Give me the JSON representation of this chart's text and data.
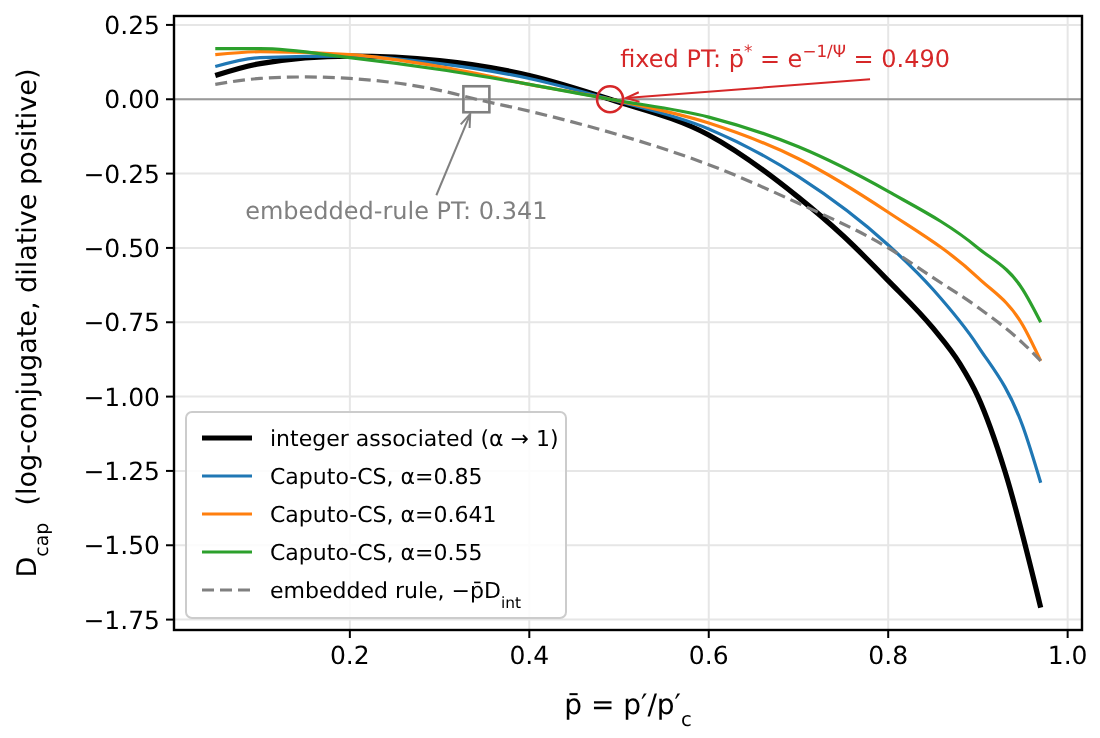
{
  "chart_data": {
    "type": "line",
    "xlabel": "p̄ = p′/p′$_{c}$",
    "ylabel": "D$_{cap}$  (log-conjugate, dilative positive)",
    "xlim": [
      0.004,
      1.016
    ],
    "ylim": [
      -1.785,
      0.28
    ],
    "xticks": [
      0.2,
      0.4,
      0.6,
      0.8,
      {
        "value": 1,
        "label": "1.0"
      }
    ],
    "yticks": [
      {
        "value": 0.25,
        "label": "0.25"
      },
      {
        "value": 0,
        "label": "0.00"
      },
      {
        "value": -0.25,
        "label": "−0.25"
      },
      {
        "value": -0.5,
        "label": "−0.50"
      },
      {
        "value": -0.75,
        "label": "−0.75"
      },
      {
        "value": -1,
        "label": "−1.00"
      },
      {
        "value": -1.25,
        "label": "−1.25"
      },
      {
        "value": -1.5,
        "label": "−1.50"
      },
      {
        "value": -1.75,
        "label": "−1.75"
      }
    ],
    "grid": true,
    "legend": "bottom left",
    "ref_lines": [
      {
        "axis": "y",
        "value": 0,
        "color": "#999999"
      }
    ],
    "annotations": [
      {
        "text": "fixed PT: p̄$^{*}$ = e$^{−1/Ψ}$ = 0.490",
        "x": 0.49,
        "y": 0
      },
      {
        "text": "embedded-rule PT: 0.341",
        "x": 0.341,
        "y": 0
      }
    ],
    "series": [
      {
        "name": "integer associated (α → 1)",
        "color": "#000000",
        "x": [
          0.05,
          0.1,
          0.2,
          0.3,
          0.4,
          0.49,
          0.6,
          0.7,
          0.75,
          0.8,
          0.85,
          0.88,
          0.9,
          0.93,
          0.97
        ],
        "values": [
          0.08,
          0.12,
          0.145,
          0.13,
          0.08,
          0.0,
          -0.12,
          -0.33,
          -0.46,
          -0.61,
          -0.77,
          -0.89,
          -1.0,
          -1.25,
          -1.71
        ]
      },
      {
        "name": "Caputo-CS, α=0.85",
        "color": "#1f77b4",
        "x": [
          0.05,
          0.1,
          0.2,
          0.3,
          0.4,
          0.49,
          0.6,
          0.7,
          0.8,
          0.85,
          0.9,
          0.95,
          0.97
        ],
        "values": [
          0.11,
          0.14,
          0.145,
          0.12,
          0.07,
          0.0,
          -0.1,
          -0.26,
          -0.49,
          -0.64,
          -0.83,
          -1.1,
          -1.29
        ]
      },
      {
        "name": "Caputo-CS, α=0.641",
        "color": "#ff7f0e",
        "x": [
          0.05,
          0.1,
          0.2,
          0.3,
          0.4,
          0.49,
          0.6,
          0.7,
          0.8,
          0.9,
          0.95,
          0.97
        ],
        "values": [
          0.15,
          0.16,
          0.15,
          0.11,
          0.05,
          0.0,
          -0.08,
          -0.2,
          -0.38,
          -0.6,
          -0.76,
          -0.88
        ]
      },
      {
        "name": "Caputo-CS, α=0.55",
        "color": "#2ca02c",
        "x": [
          0.05,
          0.1,
          0.2,
          0.3,
          0.4,
          0.49,
          0.6,
          0.7,
          0.8,
          0.9,
          0.95,
          0.97
        ],
        "values": [
          0.17,
          0.17,
          0.14,
          0.1,
          0.05,
          0.0,
          -0.06,
          -0.16,
          -0.31,
          -0.5,
          -0.64,
          -0.75
        ]
      },
      {
        "name": "embedded rule, −p̄D$_{int}$",
        "color": "#808080",
        "line_style": "dashed",
        "x": [
          0.05,
          0.1,
          0.15,
          0.2,
          0.3,
          0.341,
          0.4,
          0.5,
          0.6,
          0.7,
          0.8,
          0.85,
          0.9,
          0.95,
          0.97
        ],
        "values": [
          0.05,
          0.07,
          0.075,
          0.07,
          0.03,
          0.0,
          -0.04,
          -0.12,
          -0.22,
          -0.35,
          -0.5,
          -0.6,
          -0.7,
          -0.82,
          -0.88
        ]
      }
    ]
  }
}
